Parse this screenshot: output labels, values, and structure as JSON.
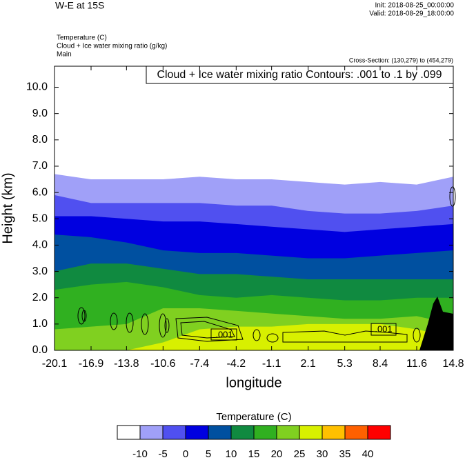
{
  "chart_data": {
    "type": "contourf",
    "title": "W-E at 15S",
    "init": "Init: 2018-08-25_00:00:00",
    "valid": "Valid: 2018-08-29_18:00:00",
    "field_labels": [
      "Temperature   (C)",
      "Cloud + Ice water mixing ratio   (g/kg)",
      "Main"
    ],
    "cross_section": "Cross-Section: (130,279) to (454,279)",
    "contour_info": "Cloud + Ice water mixing ratio Contours: .001 to .1 by .099",
    "contour_labels": [
      ".001",
      ".001"
    ],
    "x_label": "longitude",
    "y_label": "Height (km)",
    "x": [
      -20.1,
      -16.9,
      -13.8,
      -10.6,
      -7.4,
      -4.2,
      -1.1,
      2.1,
      5.3,
      8.4,
      11.6,
      14.8
    ],
    "isolines": [
      {
        "level": -10,
        "heights": [
          6.7,
          6.5,
          6.5,
          6.5,
          6.6,
          6.5,
          6.5,
          6.4,
          6.3,
          6.4,
          6.3,
          6.6
        ]
      },
      {
        "level": -5,
        "heights": [
          5.9,
          5.6,
          5.6,
          5.6,
          5.6,
          5.5,
          5.5,
          5.3,
          5.2,
          5.2,
          5.3,
          5.5
        ]
      },
      {
        "level": 0,
        "heights": [
          5.1,
          5.1,
          5.0,
          4.9,
          4.9,
          4.8,
          4.7,
          4.6,
          4.5,
          4.6,
          4.7,
          4.8
        ]
      },
      {
        "level": 5,
        "heights": [
          4.4,
          4.3,
          4.1,
          3.8,
          3.7,
          3.7,
          3.6,
          3.5,
          3.5,
          3.6,
          3.7,
          3.8
        ]
      },
      {
        "level": 10,
        "heights": [
          3.0,
          3.3,
          3.3,
          3.1,
          2.9,
          2.9,
          2.8,
          2.7,
          2.7,
          2.7,
          2.7,
          2.7
        ]
      },
      {
        "level": 15,
        "heights": [
          2.3,
          2.5,
          2.6,
          2.4,
          2.1,
          2.0,
          2.1,
          2.0,
          1.9,
          1.9,
          2.0,
          2.0
        ]
      },
      {
        "level": 20,
        "heights": [
          0.8,
          0.9,
          1.0,
          1.6,
          1.6,
          1.5,
          1.4,
          1.3,
          1.2,
          1.2,
          1.3,
          1.0
        ]
      },
      {
        "level": 25,
        "heights": [
          0,
          0,
          0,
          0.3,
          0.8,
          0.9,
          0.9,
          1.0,
          1.0,
          1.0,
          0.8,
          0.5
        ]
      }
    ],
    "xlim": [
      -20.1,
      14.8
    ],
    "ylim": [
      0,
      10.8
    ],
    "xticks": [
      -20.1,
      -16.9,
      -13.8,
      -10.6,
      -7.4,
      -4.2,
      -1.1,
      2.1,
      5.3,
      8.4,
      11.6,
      14.8
    ],
    "yticks": [
      {
        "value": 0,
        "label": "0.0"
      },
      {
        "value": 1,
        "label": "1.0"
      },
      {
        "value": 2,
        "label": "2.0"
      },
      {
        "value": 3,
        "label": "3.0"
      },
      {
        "value": 4,
        "label": "4.0"
      },
      {
        "value": 5,
        "label": "5.0"
      },
      {
        "value": 6,
        "label": "6.0"
      },
      {
        "value": 7,
        "label": "7.0"
      },
      {
        "value": 8,
        "label": "8.0"
      },
      {
        "value": 9,
        "label": "9.0"
      },
      {
        "value": 10,
        "label": "10.0"
      }
    ],
    "colorbar": {
      "title": "Temperature  (C)",
      "levels": [
        -10,
        -5,
        0,
        5,
        10,
        15,
        20,
        25,
        30,
        35,
        40
      ],
      "colors": [
        "#ffffff",
        "#a0a0f8",
        "#5050f0",
        "#0000e0",
        "#0050a0",
        "#108a40",
        "#30b020",
        "#80d020",
        "#d8f000",
        "#ffc000",
        "#ff6000",
        "#ff0000"
      ]
    }
  }
}
